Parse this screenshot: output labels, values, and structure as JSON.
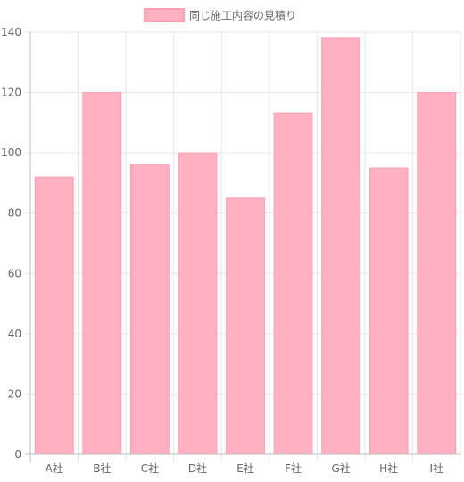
{
  "chart_data": {
    "type": "bar",
    "categories": [
      "A社",
      "B社",
      "C社",
      "D社",
      "E社",
      "F社",
      "G社",
      "H社",
      "I社"
    ],
    "series": [
      {
        "name": "同じ施工内容の見積り",
        "values": [
          92,
          120,
          96,
          100,
          85,
          113,
          138,
          95,
          120
        ],
        "color": "#ffb0c1",
        "border_color": "#ff9cb1"
      }
    ],
    "y_ticks": [
      "0",
      "20",
      "40",
      "60",
      "80",
      "100",
      "120",
      "140"
    ],
    "ylim": [
      0,
      140
    ],
    "grid": true,
    "legend": "top-center",
    "title": "",
    "xlabel": "",
    "ylabel": ""
  }
}
